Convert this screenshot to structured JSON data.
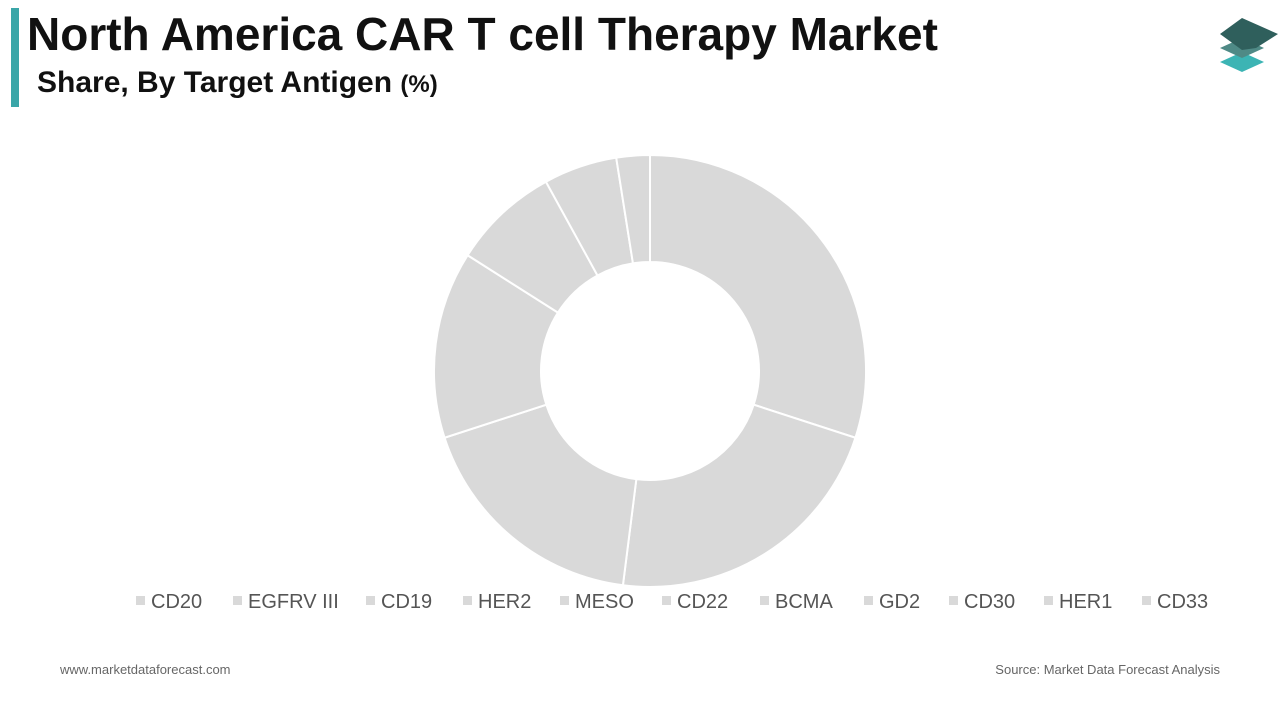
{
  "header": {
    "title": "North America CAR T cell Therapy Market",
    "subtitle": "Share, By Target Antigen",
    "subtitle_unit": "(%)"
  },
  "colors": {
    "accent": "#3aa6a8",
    "slice": "#d9d9d9",
    "slice_border": "#ffffff",
    "legend_marker": "#d9d9d9",
    "logo_top": "#2f5f5c",
    "logo_mid": "#4f8a86",
    "logo_bottom": "#3cb4b4"
  },
  "logo": {
    "icon": "stacked-layers-icon"
  },
  "chart_data": {
    "type": "pie",
    "donut": true,
    "legend_position": "bottom",
    "categories": [
      "CD20",
      "EGFRV III",
      "CD19",
      "HER2",
      "MESO",
      "CD22",
      "BCMA",
      "GD2",
      "CD30",
      "HER1",
      "CD33"
    ],
    "values": [
      30.0,
      22.0,
      18.0,
      14.0,
      8.0,
      5.5,
      2.5,
      0,
      0,
      0,
      0
    ]
  },
  "footer": {
    "website": "www.marketdataforecast.com",
    "source": "Source: Market Data Forecast Analysis"
  }
}
